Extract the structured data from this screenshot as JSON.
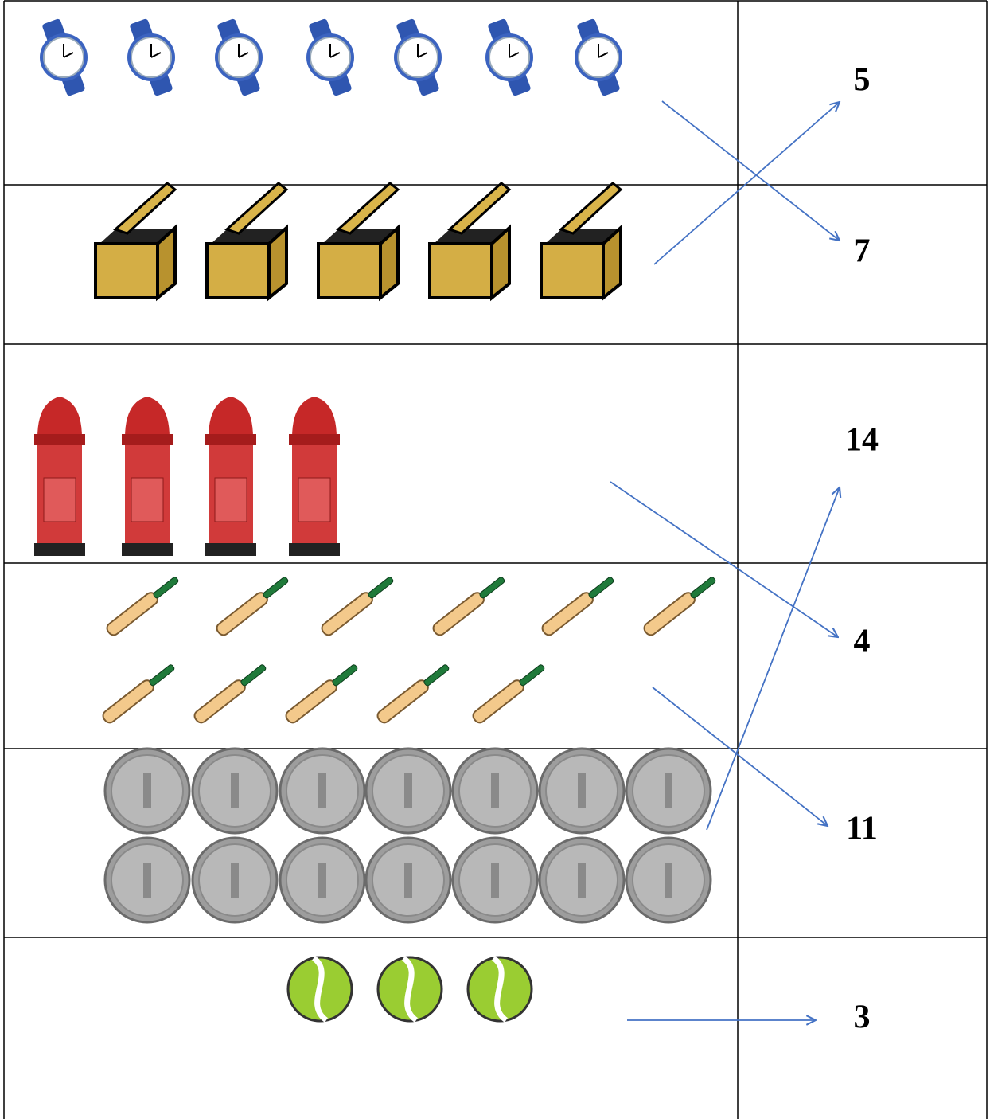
{
  "numbers": [
    "5",
    "7",
    "14",
    "4",
    "11",
    "3"
  ]
}
